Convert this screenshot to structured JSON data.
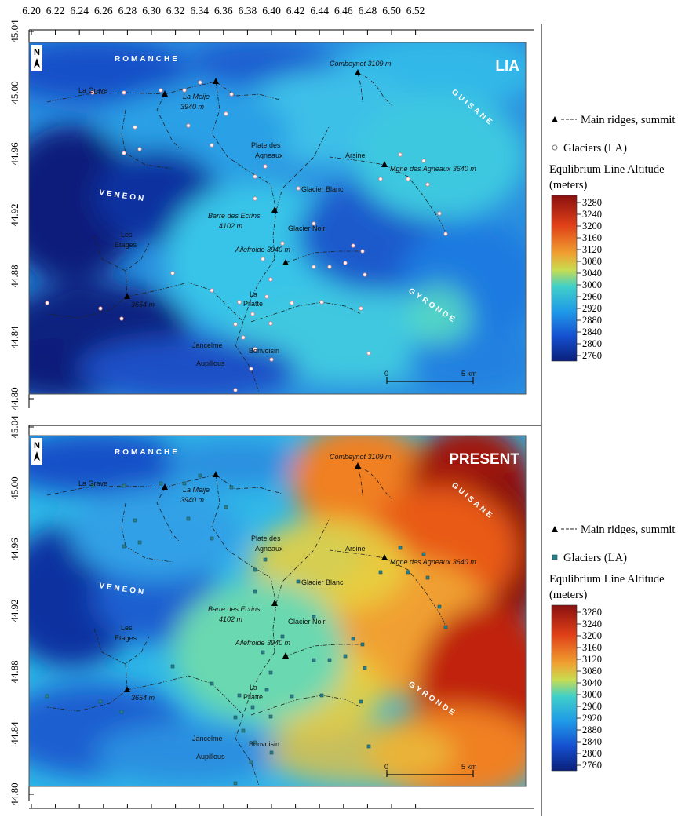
{
  "lon_ticks": [
    "6.20",
    "6.22",
    "6.24",
    "6.26",
    "6.28",
    "6.30",
    "6.32",
    "6.34",
    "6.36",
    "6.38",
    "6.40",
    "6.42",
    "6.44",
    "6.46",
    "6.48",
    "6.50",
    "6.52"
  ],
  "lat_ticks": [
    "45.04",
    "45.00",
    "44.96",
    "44.92",
    "44.88",
    "44.84",
    "44.80"
  ],
  "panels": [
    {
      "title": "LIA",
      "elevation": {
        "top_left_m": 2760,
        "mid_m": 2960,
        "right_m": 2960
      },
      "places": {
        "romanche": "ROMANCHE",
        "guisane": "GUISANE",
        "veneon": "VENEON",
        "gyronde": "GYRONDE",
        "la_grave": "La Grave",
        "la_meije": "La Meije",
        "la_meije_alt": "3940 m",
        "combeynot": "Combeynot 3109 m",
        "plate_des_agneaux_1": "Plate des",
        "plate_des_agneaux_2": "Agneaux",
        "arsine": "Arsine",
        "mgne_des_agneaux": "Mgne des Agneaux 3640 m",
        "glacier_blanc": "Glacier Blanc",
        "glacier_noir": "Glacier Noir",
        "barre_des_ecrins": "Barre des Ecrins",
        "barre_alt": "4102 m",
        "ailefroide": "Ailefroide 3940 m",
        "les_etages_1": "Les",
        "les_etages_2": "Etages",
        "summit_3654": "3654 m",
        "la_pilatte_1": "La",
        "la_pilatte_2": "Pilatte",
        "jancelme": "Jancelme",
        "bonvoisin": "Bonvoisin",
        "aupillous": "Aupillous"
      },
      "scale": {
        "start": "0",
        "end": "5 km"
      }
    },
    {
      "title": "PRESENT",
      "elevation": {
        "top_left_m": 2960,
        "mid_m": 3040,
        "right_m": 3240
      },
      "places": {
        "romanche": "ROMANCHE",
        "guisane": "GUISANE",
        "veneon": "VENEON",
        "gyronde": "GYRONDE",
        "la_grave": "La Grave",
        "la_meije": "La Meije",
        "la_meije_alt": "3940 m",
        "combeynot": "Combeynot 3109 m",
        "plate_des_agneaux_1": "Plate des",
        "plate_des_agneaux_2": "Agneaux",
        "arsine": "Arsine",
        "mgne_des_agneaux": "Mgne des Agneaux 3640 m",
        "glacier_blanc": "Glacier Blanc",
        "glacier_noir": "Glacier Noir",
        "barre_des_ecrins": "Barre des Ecrins",
        "barre_alt": "4102 m",
        "ailefroide": "Ailefroide 3940 m",
        "les_etages_1": "Les",
        "les_etages_2": "Etages",
        "summit_3654": "3654 m",
        "la_pilatte_1": "La",
        "la_pilatte_2": "Pilatte",
        "jancelme": "Jancelme",
        "bonvoisin": "Bonvoisin",
        "aupillous": "Aupillous"
      },
      "scale": {
        "start": "0",
        "end": "5 km"
      }
    }
  ],
  "legends": [
    {
      "ridges": "Main ridges, summit",
      "glaciers": "Glaciers (LA)",
      "ela_title_1": "Equlibrium Line Altitude",
      "ela_title_2": "(meters)",
      "ticks": [
        "3280",
        "3240",
        "3200",
        "3160",
        "3120",
        "3080",
        "3040",
        "3000",
        "2960",
        "2920",
        "2880",
        "2840",
        "2800",
        "2760"
      ]
    },
    {
      "ridges": "Main ridges, summit",
      "glaciers": "Glaciers (LA)",
      "ela_title_1": "Equlibrium Line Altitude",
      "ela_title_2": "(meters)",
      "ticks": [
        "3280",
        "3240",
        "3200",
        "3160",
        "3120",
        "3080",
        "3040",
        "3000",
        "2960",
        "2920",
        "2880",
        "2840",
        "2800",
        "2760"
      ]
    }
  ],
  "colors": {
    "c2760": "#0a1f7a",
    "c2880": "#1f6fe0",
    "c2960": "#28b8e8",
    "c3040": "#5fd8b0",
    "c3120": "#e8d040",
    "c3200": "#f08020",
    "c3280": "#8a1010"
  }
}
